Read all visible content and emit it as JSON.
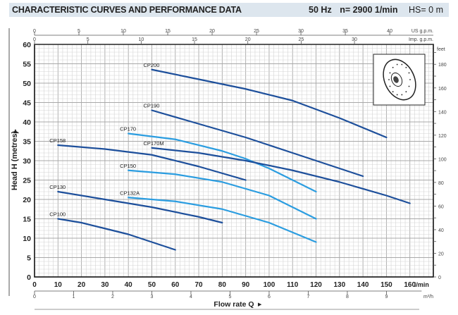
{
  "header": {
    "title": "CHARACTERISTIC CURVES AND PERFORMANCE DATA",
    "frequency": "50 Hz",
    "speed": "n= 2900  1/min",
    "hs": "HS= 0 m"
  },
  "chart_data": {
    "type": "line",
    "xlabel": "Flow rate  Q",
    "ylabel": "Head H (metres)",
    "x_unit": "l/min",
    "xlim": [
      0,
      170
    ],
    "ylim": [
      0,
      60
    ],
    "x_ticks": [
      0,
      10,
      20,
      30,
      40,
      50,
      60,
      70,
      80,
      90,
      100,
      110,
      120,
      130,
      140,
      150,
      160
    ],
    "y_ticks": [
      0,
      5,
      10,
      15,
      20,
      25,
      30,
      35,
      40,
      45,
      50,
      55,
      60
    ],
    "grid": true,
    "secondary_axes": {
      "us_gpm": {
        "label": "US g.p.m.",
        "ticks": [
          0,
          5,
          10,
          15,
          20,
          25,
          30,
          35,
          40
        ]
      },
      "imp_gpm": {
        "label": "Imp. g.p.m.",
        "ticks": [
          0,
          5,
          10,
          15,
          20,
          25,
          30
        ]
      },
      "m3h": {
        "label": "m³/h",
        "ticks": [
          0,
          1,
          2,
          3,
          4,
          5,
          6,
          7,
          8,
          9
        ]
      },
      "feet": {
        "label": "feet",
        "ticks": [
          0,
          20,
          40,
          60,
          80,
          100,
          120,
          140,
          160,
          180
        ]
      }
    },
    "colors": {
      "dark": "#1d4f9b",
      "light": "#2b9de0"
    },
    "series": [
      {
        "name": "CP200",
        "color": "dark",
        "points": [
          [
            50,
            53.5
          ],
          [
            70,
            51
          ],
          [
            90,
            48.5
          ],
          [
            110,
            45.5
          ],
          [
            130,
            41
          ],
          [
            150,
            36
          ]
        ]
      },
      {
        "name": "CP190",
        "color": "dark",
        "points": [
          [
            50,
            43
          ],
          [
            70,
            39.5
          ],
          [
            90,
            36
          ],
          [
            110,
            32
          ],
          [
            130,
            28
          ],
          [
            140,
            26
          ]
        ]
      },
      {
        "name": "CP170",
        "color": "light",
        "points": [
          [
            40,
            37
          ],
          [
            60,
            35.5
          ],
          [
            80,
            32.5
          ],
          [
            90,
            30.5
          ],
          [
            100,
            28
          ],
          [
            110,
            25
          ],
          [
            120,
            22
          ]
        ]
      },
      {
        "name": "CP170M",
        "color": "dark",
        "points": [
          [
            50,
            33.3
          ],
          [
            70,
            32
          ],
          [
            90,
            30
          ],
          [
            110,
            27.5
          ],
          [
            130,
            24.5
          ],
          [
            150,
            21
          ],
          [
            160,
            19
          ]
        ]
      },
      {
        "name": "CP158",
        "color": "dark",
        "points": [
          [
            10,
            34
          ],
          [
            30,
            33
          ],
          [
            50,
            31.5
          ],
          [
            70,
            28.5
          ],
          [
            90,
            25
          ]
        ]
      },
      {
        "name": "CP150",
        "color": "light",
        "points": [
          [
            40,
            27.5
          ],
          [
            60,
            26.5
          ],
          [
            80,
            24.5
          ],
          [
            100,
            21
          ],
          [
            120,
            15
          ]
        ]
      },
      {
        "name": "CP130",
        "color": "dark",
        "points": [
          [
            10,
            22
          ],
          [
            30,
            20
          ],
          [
            50,
            18
          ],
          [
            70,
            15.5
          ],
          [
            80,
            14
          ]
        ]
      },
      {
        "name": "CP132A",
        "color": "light",
        "points": [
          [
            40,
            20.5
          ],
          [
            60,
            19.5
          ],
          [
            80,
            17.5
          ],
          [
            100,
            14
          ],
          [
            120,
            9
          ]
        ]
      },
      {
        "name": "CP100",
        "color": "dark",
        "points": [
          [
            10,
            15
          ],
          [
            20,
            14
          ],
          [
            30,
            12.5
          ],
          [
            40,
            11
          ],
          [
            50,
            9
          ],
          [
            60,
            7
          ]
        ]
      }
    ]
  }
}
